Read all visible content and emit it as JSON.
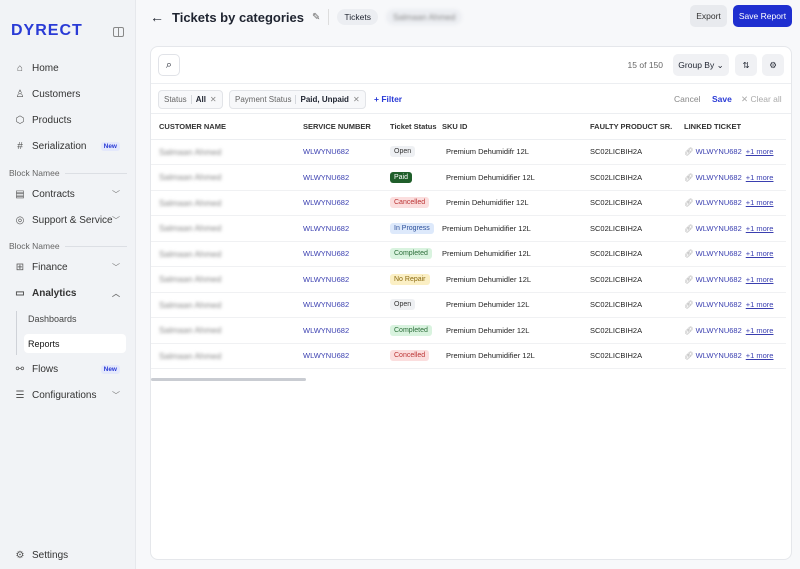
{
  "brand": "DYRECT",
  "sidebar": {
    "items": [
      {
        "label": "Home",
        "icon": "home-icon",
        "glyph": "⌂"
      },
      {
        "label": "Customers",
        "icon": "user-icon",
        "glyph": "♙"
      },
      {
        "label": "Products",
        "icon": "box-icon",
        "glyph": "⬡"
      },
      {
        "label": "Serialization",
        "icon": "hash-icon",
        "glyph": "#",
        "badge": "New"
      }
    ],
    "block1": "Block Namee",
    "items2": [
      {
        "label": "Contracts",
        "icon": "contract-icon",
        "glyph": "▤"
      },
      {
        "label": "Support & Service",
        "icon": "lifebuoy-icon",
        "glyph": "◎"
      }
    ],
    "block2": "Block Namee",
    "items3": [
      {
        "label": "Finance",
        "icon": "finance-icon",
        "glyph": "⊞"
      },
      {
        "label": "Analytics",
        "icon": "presentation-icon",
        "glyph": "▭"
      }
    ],
    "sub": [
      "Dashboards",
      "Reports"
    ],
    "items4": [
      {
        "label": "Flows",
        "icon": "flows-icon",
        "glyph": "⚯",
        "badge": "New"
      },
      {
        "label": "Configurations",
        "icon": "sliders-icon",
        "glyph": "☰"
      }
    ],
    "settings": "Settings"
  },
  "header": {
    "title": "Tickets by categories",
    "chip": "Tickets",
    "user": "Salmaan Ahmed",
    "export": "Export",
    "save_report": "Save Report"
  },
  "toolbar": {
    "count": "15 of 150",
    "group_by": "Group By"
  },
  "filters": {
    "chips": [
      {
        "label": "Status",
        "value": "All"
      },
      {
        "label": "Payment Status",
        "value": "Paid, Unpaid"
      }
    ],
    "add": "+ Filter",
    "cancel": "Cancel",
    "save": "Save",
    "clear": "✕ Clear all"
  },
  "table": {
    "columns": [
      "CUSTOMER NAME",
      "SERVICE NUMBER",
      "Ticket Status",
      "SKU ID",
      "FAULTY PRODUCT SR.",
      "LINKED TICKET"
    ],
    "rows": [
      {
        "name": "Salmaan Ahmed",
        "service": "WLWYNU682",
        "status": "Open",
        "sku": "Premium Dehumidifr 12L",
        "faulty": "SC02LICBIH2A",
        "linked": "WLWYNU682",
        "more": "+1 more"
      },
      {
        "name": "Salmaan Ahmed",
        "service": "WLWYNU682",
        "status": "Paid",
        "sku": "Premium Dehumidifier 12L",
        "faulty": "SC02LICBIH2A",
        "linked": "WLWYNU682",
        "more": "+1 more"
      },
      {
        "name": "Salmaan Ahmed",
        "service": "WLWYNU682",
        "status": "Cancelled",
        "sku": "Premin Dehumidifier 12L",
        "faulty": "SC02LICBIH2A",
        "linked": "WLWYNU682",
        "more": "+1 more"
      },
      {
        "name": "Salmaan Ahmed",
        "service": "WLWYNU682",
        "status": "In Progress",
        "sku": "Premium Dehumidifier 12L",
        "faulty": "SC02LICBIH2A",
        "linked": "WLWYNU682",
        "more": "+1 more"
      },
      {
        "name": "Salmaan Ahmed",
        "service": "WLWYNU682",
        "status": "Completed",
        "sku": "Premium Dehumidifier 12L",
        "faulty": "SC02LICBIH2A",
        "linked": "WLWYNU682",
        "more": "+1 more"
      },
      {
        "name": "Salmaan Ahmed",
        "service": "WLWYNU682",
        "status": "No Repair",
        "sku": "Premium Dehumidler 12L",
        "faulty": "SC02LICBIH2A",
        "linked": "WLWYNU682",
        "more": "+1 more"
      },
      {
        "name": "Salmaan Ahmed",
        "service": "WLWYNU682",
        "status": "Open",
        "sku": "Premium Dehumider 12L",
        "faulty": "SC02LICBIH2A",
        "linked": "WLWYNU682",
        "more": "+1 more"
      },
      {
        "name": "Salmaan Ahmed",
        "service": "WLWYNU682",
        "status": "Completed",
        "sku": "Premium Dehumider 12L",
        "faulty": "SC02LICBIH2A",
        "linked": "WLWYNU682",
        "more": "+1 more"
      },
      {
        "name": "Salmaan Ahmed",
        "service": "WLWYNU682",
        "status": "Concelled",
        "sku": "Premium Dehumidifier 12L",
        "faulty": "SC02LICBIH2A",
        "linked": "WLWYNU682",
        "more": "+1 more"
      }
    ]
  },
  "status_colors": {
    "Open": [
      "#eef0f3",
      "#333"
    ],
    "Paid": [
      "#1f5e2a",
      "#fff"
    ],
    "Cancelled": [
      "#fbdede",
      "#b33"
    ],
    "Concelled": [
      "#fbdede",
      "#b33"
    ],
    "In Progress": [
      "#dde9fb",
      "#2c4f9a"
    ],
    "Completed": [
      "#d9f3df",
      "#2a6d38"
    ],
    "No Repair": [
      "#fbefc4",
      "#8a6a10"
    ]
  },
  "colors": {
    "accent": "#2a3bd6",
    "link": "#3a3fb0"
  }
}
